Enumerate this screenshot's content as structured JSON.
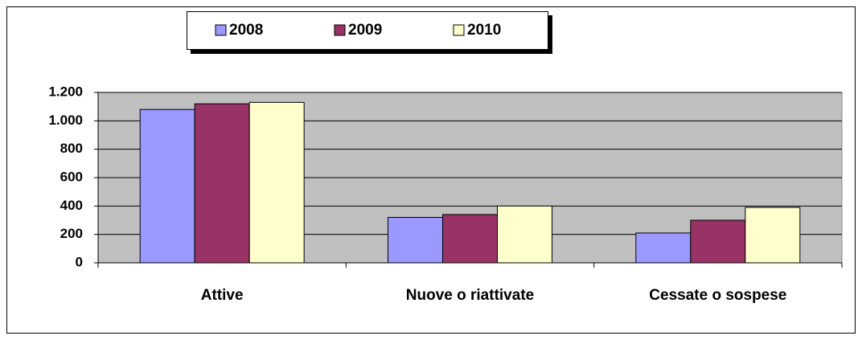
{
  "chart_data": {
    "type": "bar",
    "categories": [
      "Attive",
      "Nuove o riattivate",
      "Cessate o sospese"
    ],
    "series": [
      {
        "name": "2008",
        "color": "#9999ff",
        "values": [
          1080,
          320,
          210
        ]
      },
      {
        "name": "2009",
        "color": "#993366",
        "values": [
          1120,
          340,
          300
        ]
      },
      {
        "name": "2010",
        "color": "#ffffcc",
        "values": [
          1130,
          400,
          390
        ]
      }
    ],
    "ylim": [
      0,
      1200
    ],
    "yticks": [
      0,
      200,
      400,
      600,
      800,
      {
        "value": 1000,
        "label": "1.000"
      },
      {
        "value": 1200,
        "label": "1.200"
      }
    ],
    "grid": true,
    "legend": "top"
  }
}
